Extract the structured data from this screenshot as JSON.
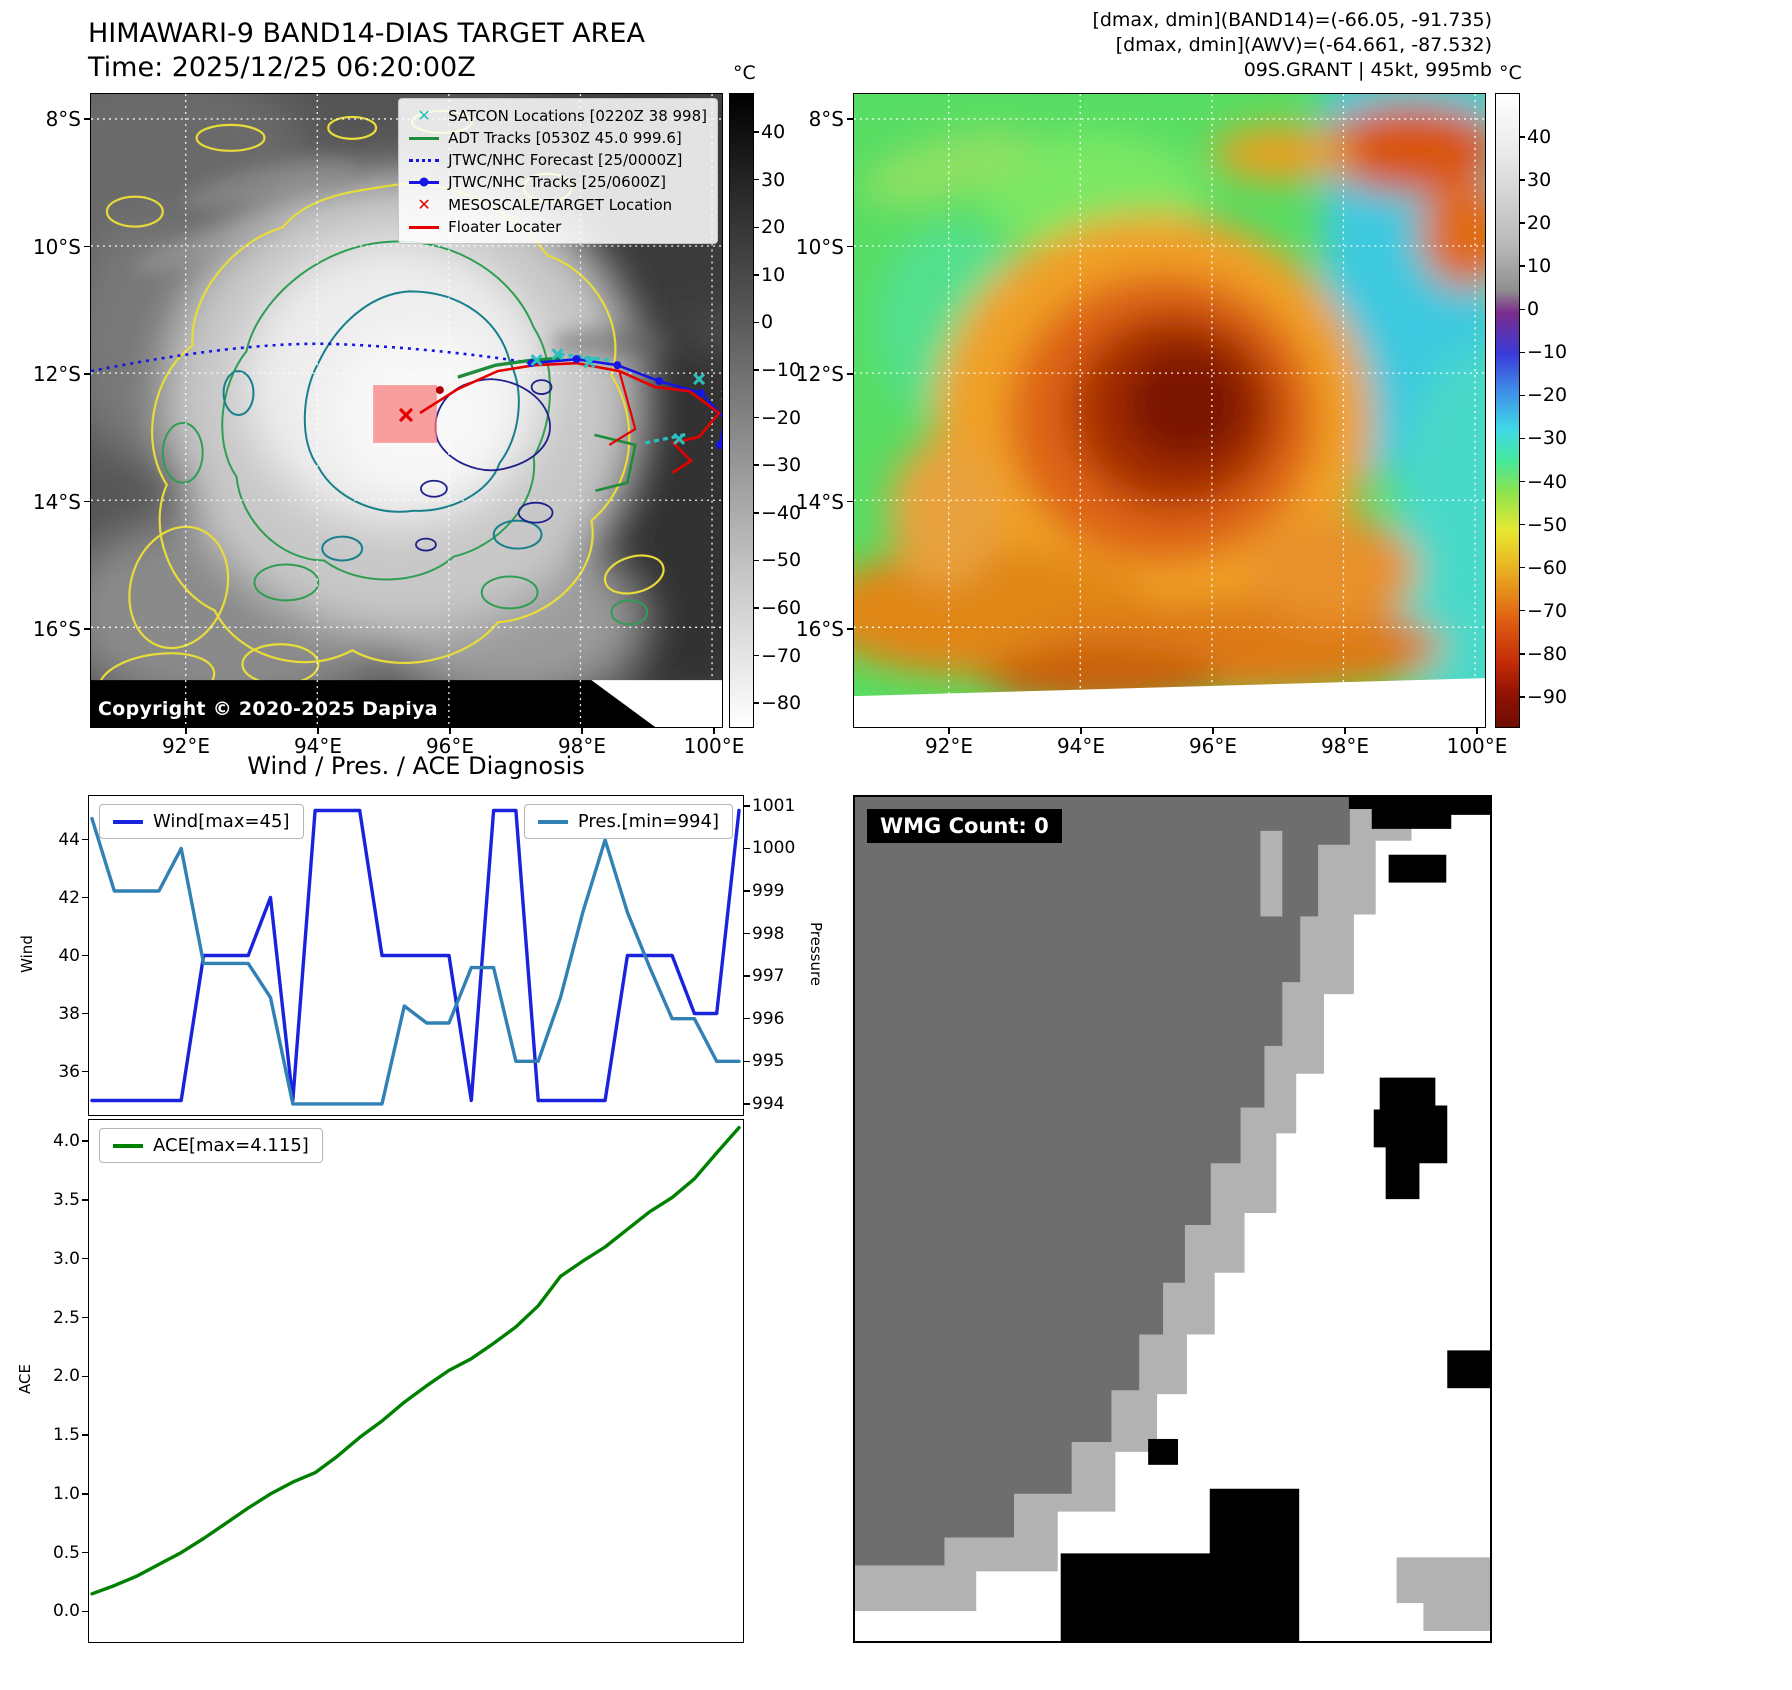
{
  "header": {
    "title_line1": "HIMAWARI-9 BAND14-DIAS TARGET AREA",
    "title_line2": "Time: 2025/12/25 06:20:00Z",
    "right_line1": "[dmax, dmin](BAND14)=(-66.05, -91.735)",
    "right_line2": "[dmax, dmin](AWV)=(-64.661, -87.532)",
    "right_line3": "09S.GRANT | 45kt, 995mb"
  },
  "map1": {
    "legend": [
      {
        "label": "SATCON Locations [0220Z 38 998]",
        "marker": "x",
        "color": "#2bbfbf"
      },
      {
        "label": "ADT Tracks [0530Z 45.0 999.6]",
        "marker": "line",
        "color": "#1e8c3c"
      },
      {
        "label": "JTWC/NHC Forecast [25/0000Z]",
        "marker": "dotted",
        "color": "#1515e6"
      },
      {
        "label": "JTWC/NHC Tracks [25/0600Z]",
        "marker": "line-dot",
        "color": "#1515e6"
      },
      {
        "label": "MESOSCALE/TARGET Location",
        "marker": "x",
        "color": "#e60000"
      },
      {
        "label": "Floater Locater",
        "marker": "line",
        "color": "#e60000"
      }
    ],
    "copyright": "Copyright © 2020-2025 Dapiya",
    "x_ticks": [
      "92°E",
      "94°E",
      "96°E",
      "98°E",
      "100°E"
    ],
    "y_ticks": [
      "8°S",
      "10°S",
      "12°S",
      "14°S",
      "16°S"
    ],
    "colorbar_unit": "°C",
    "colorbar_ticks": [
      40,
      30,
      20,
      10,
      0,
      -10,
      -20,
      -30,
      -40,
      -50,
      -60,
      -70,
      -80
    ]
  },
  "map2": {
    "x_ticks": [
      "92°E",
      "94°E",
      "96°E",
      "98°E",
      "100°E"
    ],
    "y_ticks": [
      "8°S",
      "10°S",
      "12°S",
      "14°S",
      "16°S"
    ],
    "colorbar_unit": "°C",
    "colorbar_ticks": [
      40,
      30,
      20,
      10,
      0,
      -10,
      -20,
      -30,
      -40,
      -50,
      -60,
      -70,
      -80,
      -90
    ]
  },
  "wmg": {
    "count_label": "WMG Count: 0"
  },
  "chart_data": [
    {
      "type": "line",
      "title": "Wind / Pres. / ACE Diagnosis",
      "x_is_index": true,
      "grid": false,
      "legend_position": [
        "upper-left",
        "upper-right"
      ],
      "series": [
        {
          "name": "Wind[max=45]",
          "axis": "left",
          "color": "#1922dd",
          "values": [
            35,
            35,
            35,
            35,
            35,
            40,
            40,
            40,
            42,
            35,
            45,
            45,
            45,
            40,
            40,
            40,
            40,
            35,
            45,
            45,
            35,
            35,
            35,
            35,
            40,
            40,
            40,
            38,
            38,
            45
          ]
        },
        {
          "name": "Pres.[min=994]",
          "axis": "right",
          "color": "#3181b5",
          "values": [
            1000.7,
            999,
            999,
            999,
            1000,
            997.3,
            997.3,
            997.3,
            996.5,
            994,
            994,
            994,
            994,
            994,
            996.3,
            995.9,
            995.9,
            997.2,
            997.2,
            995,
            995,
            996.5,
            998.5,
            1000.2,
            998.5,
            997.2,
            996,
            996,
            995,
            995
          ]
        }
      ],
      "left_axis": {
        "label": "Wind",
        "ticks": [
          36,
          38,
          40,
          42,
          44
        ],
        "lim": [
          34.5,
          45.5
        ],
        "decimals": 0
      },
      "right_axis": {
        "label": "Pressure",
        "ticks": [
          994,
          995,
          996,
          997,
          998,
          999,
          1000,
          1001
        ],
        "lim": [
          993.74,
          1001.23
        ],
        "decimals": 0
      }
    },
    {
      "type": "line",
      "grid": false,
      "legend_position": [
        "upper-left"
      ],
      "series": [
        {
          "name": "ACE[max=4.115]",
          "axis": "left",
          "color": "#008000",
          "values": [
            0.15,
            0.22,
            0.3,
            0.4,
            0.5,
            0.62,
            0.75,
            0.88,
            1.0,
            1.1,
            1.18,
            1.32,
            1.48,
            1.62,
            1.78,
            1.92,
            2.05,
            2.15,
            2.28,
            2.42,
            2.6,
            2.85,
            2.98,
            3.1,
            3.25,
            3.4,
            3.52,
            3.68,
            3.9,
            4.115
          ]
        }
      ],
      "left_axis": {
        "label": "ACE",
        "ticks": [
          0,
          0.5,
          1,
          1.5,
          2,
          2.5,
          3,
          3.5,
          4
        ],
        "lim": [
          -0.26,
          4.18
        ],
        "decimals": 1
      }
    }
  ]
}
